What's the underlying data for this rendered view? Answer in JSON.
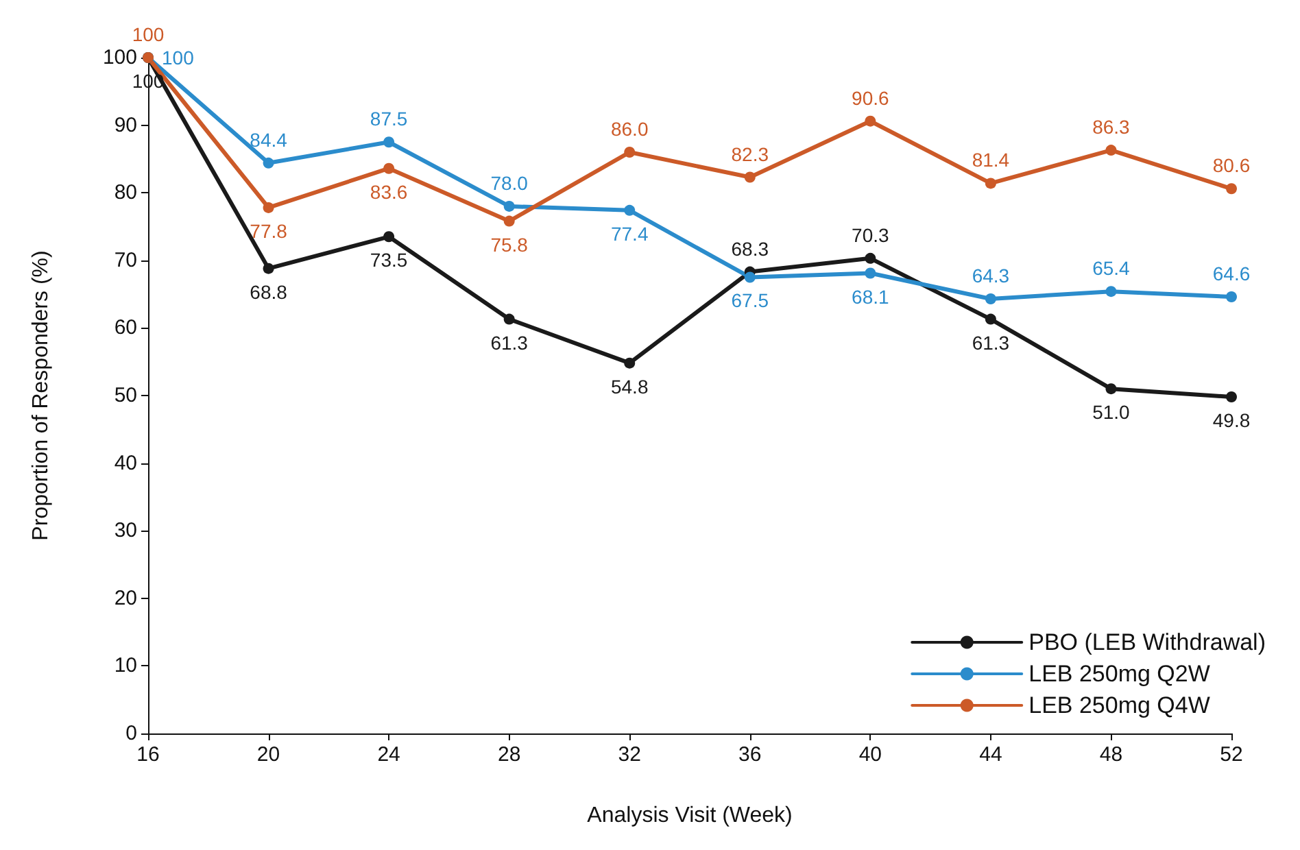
{
  "chart_data": {
    "type": "line",
    "xlabel": "Analysis Visit (Week)",
    "ylabel": "Proportion of Responders (%)",
    "x": [
      16,
      20,
      24,
      28,
      32,
      36,
      40,
      44,
      48,
      52
    ],
    "xlim": [
      16,
      52
    ],
    "xticks": [
      16,
      20,
      24,
      28,
      32,
      36,
      40,
      44,
      48,
      52
    ],
    "ylim": [
      0,
      100
    ],
    "yticks": [
      0,
      10,
      20,
      30,
      40,
      50,
      60,
      70,
      80,
      90,
      100
    ],
    "grid": false,
    "legend": "bottom right",
    "marker": "circle",
    "line_style": "solid",
    "series": [
      {
        "name": "PBO (LEB Withdrawal)",
        "color": "#1a1a1a",
        "values": [
          100,
          68.8,
          73.5,
          61.3,
          54.8,
          68.3,
          70.3,
          61.3,
          51.0,
          49.8
        ],
        "value_labels": [
          "100",
          "68.8",
          "73.5",
          "61.3",
          "54.8",
          "68.3",
          "70.3",
          "61.3",
          "51.0",
          "49.8"
        ]
      },
      {
        "name": "LEB 250mg Q2W",
        "color": "#2b8ccc",
        "values": [
          100,
          84.4,
          87.5,
          78.0,
          77.4,
          67.5,
          68.1,
          64.3,
          65.4,
          64.6
        ],
        "value_labels": [
          "100",
          "84.4",
          "87.5",
          "78.0",
          "77.4",
          "67.5",
          "68.1",
          "64.3",
          "65.4",
          "64.6"
        ]
      },
      {
        "name": "LEB 250mg Q4W",
        "color": "#cc5a28",
        "values": [
          100,
          77.8,
          83.6,
          75.8,
          86.0,
          82.3,
          90.6,
          81.4,
          86.3,
          80.6
        ],
        "value_labels": [
          "100",
          "77.8",
          "83.6",
          "75.8",
          "86.0",
          "82.3",
          "90.6",
          "81.4",
          "86.3",
          "80.6"
        ]
      }
    ]
  }
}
